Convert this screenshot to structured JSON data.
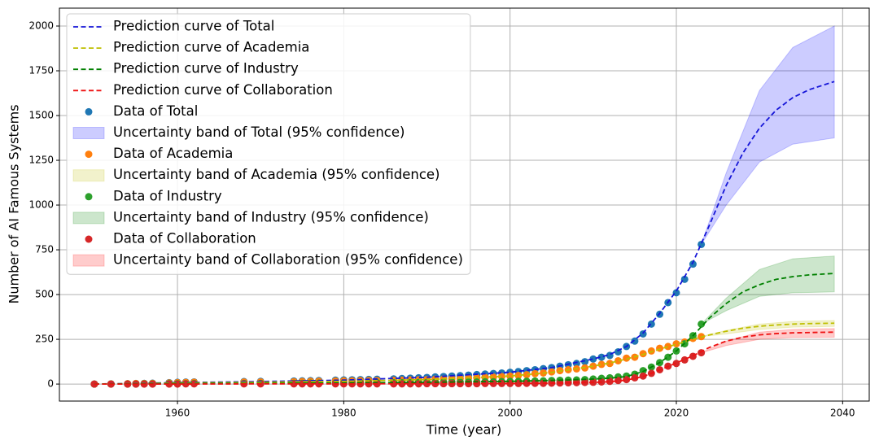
{
  "chart_data": {
    "type": "line",
    "xlabel": "Time (year)",
    "ylabel": "Number of AI Famous Systems",
    "xlim": [
      1945.8,
      2043.2
    ],
    "ylim": [
      -95,
      2100
    ],
    "xticks": [
      1960,
      1980,
      2000,
      2020,
      2040
    ],
    "yticks": [
      0,
      250,
      500,
      750,
      1000,
      1250,
      1500,
      1750,
      2000
    ],
    "grid": true,
    "legend": "upper left",
    "series": [
      {
        "name": "Prediction curve of Total",
        "type": "line",
        "dashed": true,
        "color": "#1515d8",
        "x": [
          1950,
          1960,
          1970,
          1980,
          1990,
          2000,
          2005,
          2010,
          2012,
          2014,
          2016,
          2018,
          2020,
          2022,
          2024,
          2026,
          2028,
          2030,
          2032,
          2034,
          2036,
          2039
        ],
        "values": [
          0,
          8,
          14,
          22,
          38,
          66,
          92,
          140,
          165,
          210,
          285,
          395,
          520,
          680,
          890,
          1110,
          1290,
          1430,
          1530,
          1600,
          1645,
          1690
        ]
      },
      {
        "name": "Prediction curve of Academia",
        "type": "line",
        "dashed": true,
        "color": "#bfbf00",
        "x": [
          1950,
          1960,
          1970,
          1980,
          1990,
          2000,
          2005,
          2010,
          2012,
          2014,
          2016,
          2018,
          2020,
          2022,
          2024,
          2026,
          2028,
          2030,
          2032,
          2034,
          2036,
          2039
        ],
        "values": [
          0,
          6,
          10,
          15,
          25,
          45,
          65,
          100,
          118,
          140,
          165,
          195,
          222,
          250,
          275,
          295,
          312,
          323,
          330,
          335,
          338,
          340
        ]
      },
      {
        "name": "Prediction curve of Industry",
        "type": "line",
        "dashed": true,
        "color": "#008000",
        "x": [
          1950,
          1960,
          1970,
          1980,
          1990,
          2000,
          2005,
          2010,
          2012,
          2014,
          2016,
          2018,
          2020,
          2022,
          2024,
          2026,
          2028,
          2030,
          2032,
          2034,
          2036,
          2039
        ],
        "values": [
          0,
          3,
          4,
          6,
          10,
          15,
          20,
          28,
          33,
          42,
          70,
          120,
          185,
          270,
          370,
          450,
          515,
          555,
          585,
          600,
          610,
          618
        ]
      },
      {
        "name": "Prediction curve of Collaboration",
        "type": "line",
        "dashed": true,
        "color": "#ee1111",
        "x": [
          1950,
          1960,
          1970,
          1980,
          1990,
          2000,
          2005,
          2010,
          2012,
          2014,
          2016,
          2018,
          2020,
          2022,
          2024,
          2026,
          2028,
          2030,
          2032,
          2034,
          2036,
          2039
        ],
        "values": [
          0,
          0,
          1,
          1,
          2,
          3,
          5,
          9,
          13,
          22,
          42,
          78,
          118,
          158,
          205,
          240,
          262,
          275,
          282,
          286,
          288,
          290
        ]
      },
      {
        "name": "Data of Total",
        "type": "scatter",
        "color": "#1f77b4",
        "x": [
          1950,
          1952,
          1954,
          1955,
          1956,
          1957,
          1959,
          1960,
          1961,
          1962,
          1968,
          1970,
          1974,
          1975,
          1976,
          1977,
          1979,
          1980,
          1981,
          1982,
          1983,
          1984,
          1986,
          1987,
          1988,
          1989,
          1990,
          1991,
          1992,
          1993,
          1994,
          1995,
          1996,
          1997,
          1998,
          1999,
          2000,
          2001,
          2002,
          2003,
          2004,
          2005,
          2006,
          2007,
          2008,
          2009,
          2010,
          2011,
          2012,
          2013,
          2014,
          2015,
          2016,
          2017,
          2018,
          2019,
          2020,
          2021,
          2022,
          2023
        ],
        "values": [
          0,
          1,
          2,
          3,
          4,
          5,
          8,
          10,
          11,
          12,
          14,
          15,
          17,
          18,
          19,
          20,
          22,
          23,
          24,
          25,
          26,
          27,
          29,
          31,
          33,
          35,
          37,
          40,
          42,
          45,
          47,
          50,
          53,
          56,
          59,
          62,
          66,
          70,
          75,
          80,
          86,
          92,
          100,
          108,
          115,
          125,
          140,
          150,
          160,
          180,
          210,
          240,
          280,
          335,
          390,
          455,
          510,
          585,
          670,
          780
        ]
      },
      {
        "name": "Uncertainty band of Total (95% confidence)",
        "type": "band",
        "color": "#0000ff",
        "alpha": 0.2,
        "x": [
          2023,
          2026,
          2030,
          2034,
          2039
        ],
        "lower": [
          780,
          1000,
          1240,
          1340,
          1375
        ],
        "upper": [
          780,
          1180,
          1640,
          1880,
          2000
        ]
      },
      {
        "name": "Data of Academia",
        "type": "scatter",
        "color": "#ff7f0e",
        "x": [
          1950,
          1952,
          1954,
          1955,
          1956,
          1957,
          1959,
          1960,
          1961,
          1962,
          1968,
          1970,
          1974,
          1975,
          1976,
          1977,
          1979,
          1980,
          1981,
          1982,
          1983,
          1984,
          1986,
          1987,
          1988,
          1989,
          1990,
          1991,
          1992,
          1993,
          1994,
          1995,
          1996,
          1997,
          1998,
          1999,
          2000,
          2001,
          2002,
          2003,
          2004,
          2005,
          2006,
          2007,
          2008,
          2009,
          2010,
          2011,
          2012,
          2013,
          2014,
          2015,
          2016,
          2017,
          2018,
          2019,
          2020,
          2021,
          2022,
          2023
        ],
        "values": [
          0,
          1,
          2,
          3,
          3,
          4,
          6,
          8,
          9,
          10,
          11,
          12,
          13,
          14,
          15,
          16,
          17,
          18,
          18,
          19,
          20,
          20,
          21,
          22,
          23,
          24,
          25,
          27,
          28,
          30,
          31,
          33,
          35,
          37,
          39,
          42,
          45,
          48,
          52,
          58,
          62,
          68,
          75,
          80,
          85,
          90,
          100,
          110,
          115,
          130,
          145,
          150,
          170,
          185,
          200,
          210,
          225,
          235,
          255,
          265
        ]
      },
      {
        "name": "Uncertainty band of Academia (95% confidence)",
        "type": "band",
        "color": "#bfbf00",
        "alpha": 0.2,
        "x": [
          2023,
          2026,
          2030,
          2034,
          2039
        ],
        "lower": [
          265,
          280,
          305,
          318,
          322
        ],
        "upper": [
          265,
          300,
          335,
          350,
          355
        ]
      },
      {
        "name": "Data of Industry",
        "type": "scatter",
        "color": "#2ca02c",
        "x": [
          1950,
          1952,
          1954,
          1955,
          1956,
          1957,
          1959,
          1960,
          1961,
          1962,
          1968,
          1970,
          1974,
          1975,
          1976,
          1977,
          1979,
          1980,
          1981,
          1982,
          1983,
          1984,
          1986,
          1987,
          1988,
          1989,
          1990,
          1991,
          1992,
          1993,
          1994,
          1995,
          1996,
          1997,
          1998,
          1999,
          2000,
          2001,
          2002,
          2003,
          2004,
          2005,
          2006,
          2007,
          2008,
          2009,
          2010,
          2011,
          2012,
          2013,
          2014,
          2015,
          2016,
          2017,
          2018,
          2019,
          2020,
          2021,
          2022,
          2023
        ],
        "values": [
          0,
          0,
          0,
          0,
          1,
          1,
          2,
          2,
          2,
          3,
          3,
          4,
          4,
          4,
          5,
          5,
          5,
          6,
          6,
          6,
          6,
          7,
          7,
          8,
          8,
          9,
          9,
          10,
          10,
          11,
          11,
          12,
          12,
          13,
          13,
          14,
          15,
          15,
          16,
          17,
          18,
          20,
          21,
          22,
          23,
          25,
          28,
          32,
          35,
          40,
          45,
          55,
          75,
          95,
          120,
          150,
          185,
          225,
          270,
          335
        ]
      },
      {
        "name": "Uncertainty band of Industry (95% confidence)",
        "type": "band",
        "color": "#008000",
        "alpha": 0.2,
        "x": [
          2023,
          2026,
          2030,
          2034,
          2039
        ],
        "lower": [
          335,
          410,
          490,
          510,
          515
        ],
        "upper": [
          335,
          480,
          640,
          700,
          715
        ]
      },
      {
        "name": "Data of Collaboration",
        "type": "scatter",
        "color": "#d62728",
        "x": [
          1950,
          1952,
          1954,
          1955,
          1956,
          1957,
          1959,
          1960,
          1961,
          1962,
          1968,
          1970,
          1974,
          1975,
          1976,
          1977,
          1979,
          1980,
          1981,
          1982,
          1983,
          1984,
          1986,
          1987,
          1988,
          1989,
          1990,
          1991,
          1992,
          1993,
          1994,
          1995,
          1996,
          1997,
          1998,
          1999,
          2000,
          2001,
          2002,
          2003,
          2004,
          2005,
          2006,
          2007,
          2008,
          2009,
          2010,
          2011,
          2012,
          2013,
          2014,
          2015,
          2016,
          2017,
          2018,
          2019,
          2020,
          2021,
          2022,
          2023
        ],
        "values": [
          0,
          0,
          0,
          0,
          0,
          0,
          0,
          0,
          1,
          1,
          1,
          1,
          1,
          1,
          1,
          1,
          1,
          1,
          1,
          1,
          1,
          1,
          1,
          1,
          1,
          1,
          2,
          2,
          2,
          2,
          2,
          2,
          2,
          3,
          3,
          3,
          3,
          3,
          4,
          4,
          4,
          5,
          6,
          7,
          8,
          9,
          10,
          12,
          15,
          20,
          25,
          35,
          45,
          60,
          80,
          100,
          115,
          135,
          155,
          175
        ]
      },
      {
        "name": "Uncertainty band of Collaboration (95% confidence)",
        "type": "band",
        "color": "#ff0000",
        "alpha": 0.2,
        "x": [
          2023,
          2026,
          2030,
          2034,
          2039
        ],
        "lower": [
          175,
          215,
          250,
          260,
          262
        ],
        "upper": [
          175,
          240,
          290,
          305,
          310
        ]
      }
    ]
  }
}
